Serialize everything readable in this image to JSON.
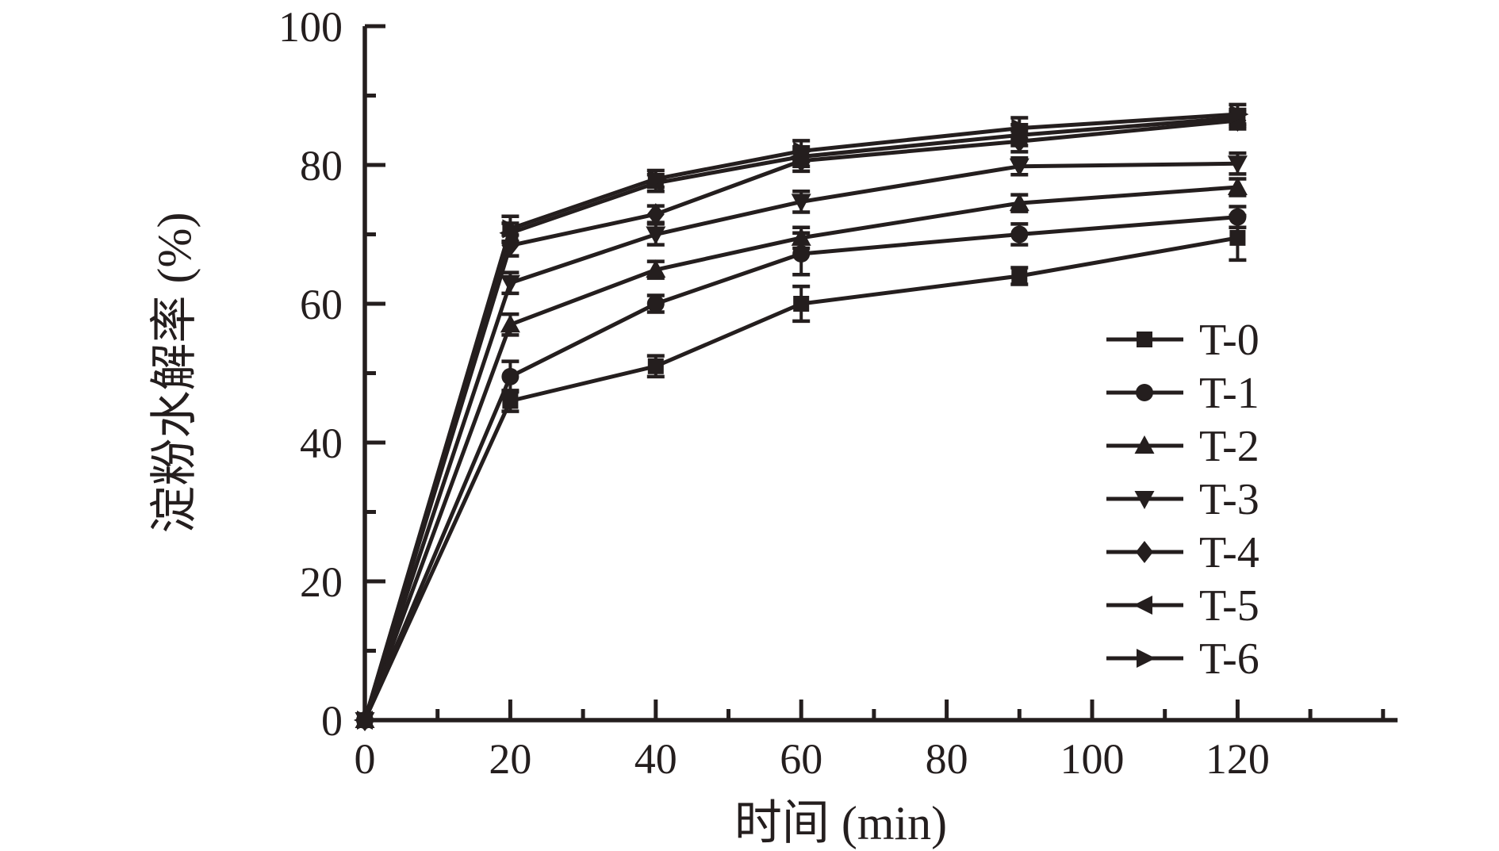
{
  "figure": {
    "background_color": "#ffffff",
    "ink_color": "#241e1e"
  },
  "chart_data": {
    "type": "line",
    "title": "",
    "xlabel": "时间 (min)",
    "ylabel": "淀粉水解率 (%)",
    "x": [
      0,
      20,
      40,
      60,
      90,
      120
    ],
    "xlim": [
      0,
      142
    ],
    "ylim": [
      0,
      100
    ],
    "x_major_ticks": [
      0,
      20,
      40,
      60,
      80,
      100,
      120
    ],
    "x_minor_ticks": [
      10,
      30,
      50,
      70,
      90,
      110,
      130,
      140
    ],
    "y_major_ticks": [
      0,
      20,
      40,
      60,
      80,
      100
    ],
    "y_minor_ticks": [
      10,
      30,
      50,
      70,
      90
    ],
    "grid": "off",
    "legend_position": "right-middle",
    "series": [
      {
        "name": "T-0",
        "marker": "square",
        "values": [
          0,
          46.0,
          51.0,
          60.0,
          64.0,
          69.5
        ],
        "errors": [
          0,
          1.5,
          1.5,
          2.5,
          1.2,
          3.2
        ]
      },
      {
        "name": "T-1",
        "marker": "circle",
        "values": [
          0,
          49.5,
          60.0,
          67.2,
          70.0,
          72.5
        ],
        "errors": [
          0,
          2.2,
          1.2,
          3.0,
          1.5,
          1.5
        ]
      },
      {
        "name": "T-2",
        "marker": "triangle-up",
        "values": [
          0,
          57.0,
          64.9,
          69.5,
          74.5,
          76.8
        ],
        "errors": [
          0,
          1.5,
          1.2,
          1.5,
          1.2,
          1.2
        ]
      },
      {
        "name": "T-3",
        "marker": "triangle-down",
        "values": [
          0,
          63.0,
          70.0,
          74.7,
          79.8,
          80.2
        ],
        "errors": [
          0,
          1.5,
          1.5,
          1.5,
          1.2,
          1.5
        ]
      },
      {
        "name": "T-4",
        "marker": "diamond",
        "values": [
          0,
          68.4,
          72.9,
          80.6,
          83.4,
          86.4
        ],
        "errors": [
          0,
          1.5,
          1.2,
          1.5,
          1.5,
          1.2
        ]
      },
      {
        "name": "T-5",
        "marker": "triangle-left",
        "values": [
          0,
          70.2,
          77.4,
          81.2,
          84.3,
          86.8
        ],
        "errors": [
          0,
          1.4,
          1.2,
          1.4,
          1.5,
          1.2
        ]
      },
      {
        "name": "T-6",
        "marker": "triangle-right",
        "values": [
          0,
          70.8,
          78.0,
          82.0,
          85.3,
          87.3
        ],
        "errors": [
          0,
          1.8,
          1.2,
          1.5,
          1.5,
          1.4
        ]
      }
    ]
  }
}
